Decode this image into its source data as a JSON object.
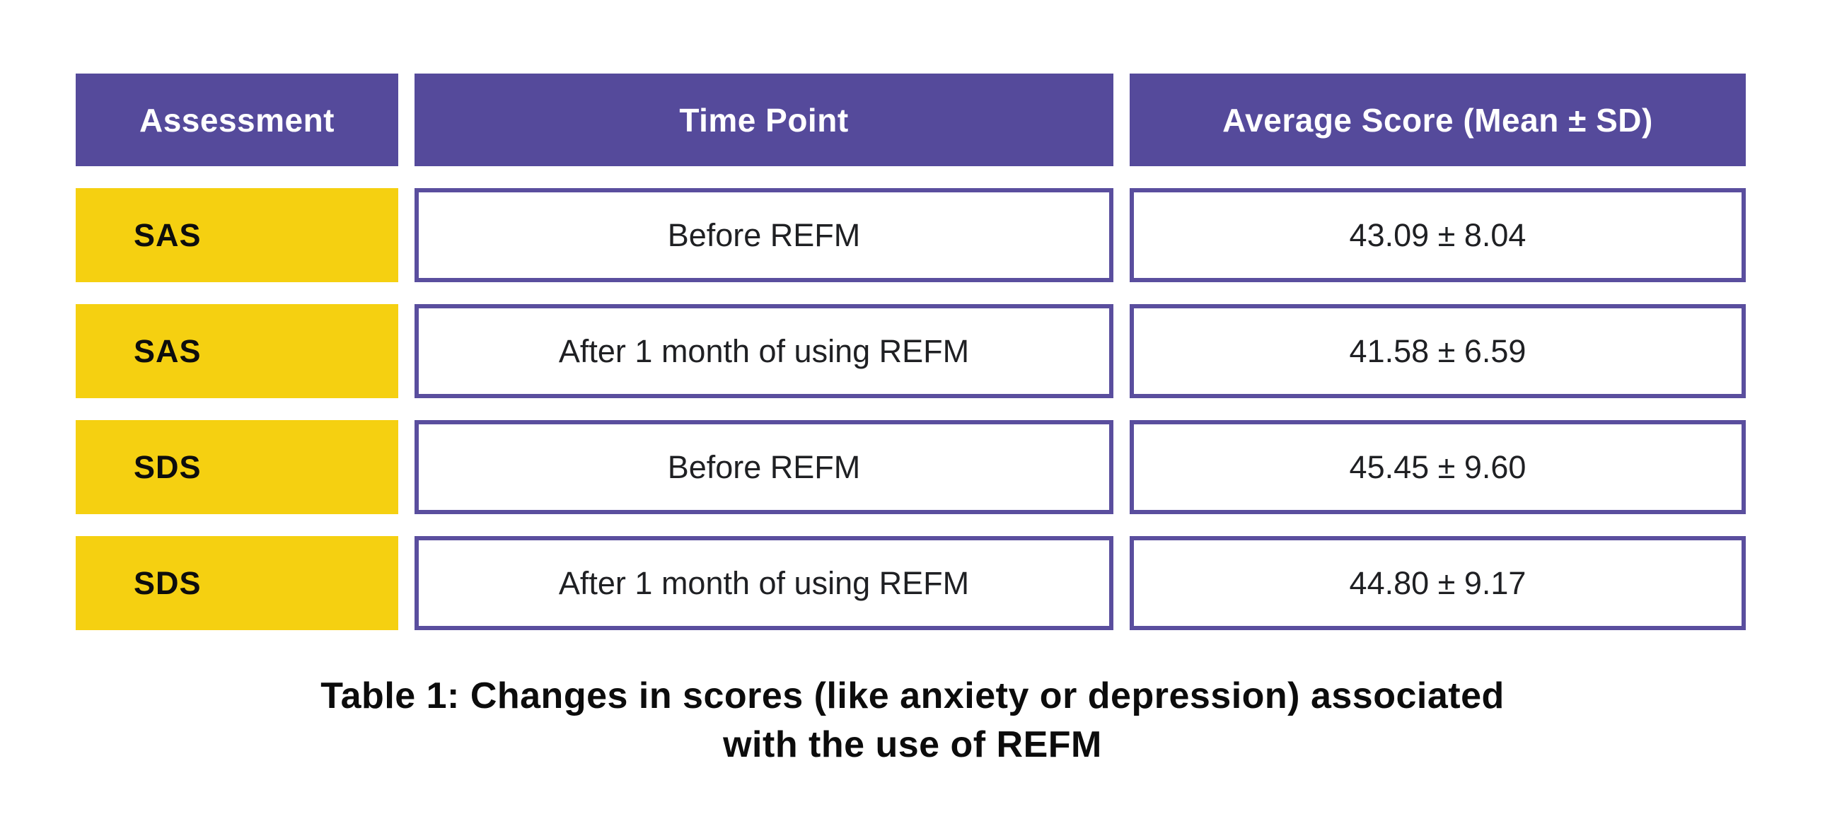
{
  "colors": {
    "header_purple": "#554a9b",
    "border_purple": "#5a4e9e",
    "accent_yellow": "#f5d011",
    "header_text": "#ffffff",
    "assessment_text": "#0d0d0d",
    "cell_text": "#1f2023",
    "caption_text": "#0c0c0c",
    "page_bg": "#ffffff"
  },
  "table": {
    "columns": [
      "Assessment",
      "Time Point",
      "Average Score (Mean ± SD)"
    ],
    "rows": [
      {
        "assessment": "SAS",
        "time_point": "Before REFM",
        "score": "43.09 ± 8.04"
      },
      {
        "assessment": "SAS",
        "time_point": "After 1 month of using REFM",
        "score": "41.58 ± 6.59"
      },
      {
        "assessment": "SDS",
        "time_point": "Before REFM",
        "score": "45.45 ± 9.60"
      },
      {
        "assessment": "SDS",
        "time_point": "After 1 month of using REFM",
        "score": "44.80 ± 9.17"
      }
    ]
  },
  "caption": {
    "line1": "Table 1: Changes in scores (like anxiety or depression) associated",
    "line2": "with the use of REFM"
  },
  "chart_data": {
    "type": "table",
    "title": "Table 1: Changes in scores (like anxiety or depression) associated with the use of REFM",
    "columns": [
      "Assessment",
      "Time Point",
      "Average Score (Mean ± SD)"
    ],
    "rows": [
      [
        "SAS",
        "Before REFM",
        "43.09 ± 8.04"
      ],
      [
        "SAS",
        "After 1 month of using REFM",
        "41.58 ± 6.59"
      ],
      [
        "SDS",
        "Before REFM",
        "45.45 ± 9.60"
      ],
      [
        "SDS",
        "After 1 month of using REFM",
        "44.80 ± 9.17"
      ]
    ],
    "categories": [
      "Before REFM",
      "After 1 month of using REFM"
    ],
    "series": [
      {
        "name": "SAS",
        "values": [
          43.09,
          41.58
        ],
        "sd": [
          8.04,
          6.59
        ]
      },
      {
        "name": "SDS",
        "values": [
          45.45,
          44.8
        ],
        "sd": [
          9.6,
          9.17
        ]
      }
    ]
  }
}
